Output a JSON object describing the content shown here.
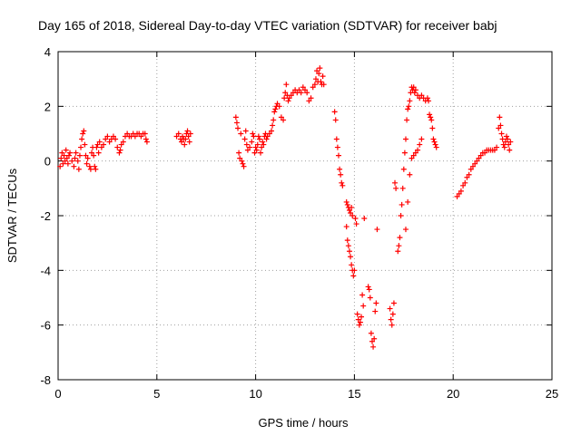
{
  "chart_data": {
    "type": "scatter",
    "title": "Day 165 of 2018, Sidereal Day-to-day VTEC variation (SDTVAR) for receiver babj",
    "xlabel": "GPS time / hours",
    "ylabel": "SDTVAR / TECUs",
    "xlim": [
      0,
      25
    ],
    "ylim": [
      -8,
      4
    ],
    "xticks": [
      0,
      5,
      10,
      15,
      20,
      25
    ],
    "yticks": [
      -8,
      -6,
      -4,
      -2,
      0,
      2,
      4
    ],
    "grid": true,
    "marker": "+",
    "series": [
      {
        "name": "SDTVAR",
        "color": "#ff0000",
        "points": [
          [
            0.1,
            -0.2
          ],
          [
            0.15,
            0.1
          ],
          [
            0.2,
            0.3
          ],
          [
            0.25,
            -0.1
          ],
          [
            0.3,
            0.2
          ],
          [
            0.35,
            0.0
          ],
          [
            0.4,
            0.4
          ],
          [
            0.45,
            0.1
          ],
          [
            0.5,
            -0.1
          ],
          [
            0.55,
            0.2
          ],
          [
            0.6,
            0.3
          ],
          [
            0.7,
            0.0
          ],
          [
            0.8,
            -0.2
          ],
          [
            0.85,
            0.1
          ],
          [
            0.9,
            0.3
          ],
          [
            1.0,
            0.0
          ],
          [
            1.05,
            -0.3
          ],
          [
            1.1,
            0.2
          ],
          [
            1.15,
            0.5
          ],
          [
            1.2,
            0.8
          ],
          [
            1.25,
            1.0
          ],
          [
            1.3,
            1.1
          ],
          [
            1.35,
            0.6
          ],
          [
            1.4,
            0.2
          ],
          [
            1.45,
            -0.1
          ],
          [
            1.5,
            0.1
          ],
          [
            1.6,
            -0.2
          ],
          [
            1.65,
            -0.3
          ],
          [
            1.7,
            0.3
          ],
          [
            1.75,
            0.5
          ],
          [
            1.8,
            0.2
          ],
          [
            1.85,
            -0.2
          ],
          [
            1.9,
            -0.3
          ],
          [
            1.95,
            0.5
          ],
          [
            2.0,
            0.6
          ],
          [
            2.05,
            0.3
          ],
          [
            2.1,
            0.7
          ],
          [
            2.2,
            0.5
          ],
          [
            2.3,
            0.6
          ],
          [
            2.4,
            0.8
          ],
          [
            2.5,
            0.9
          ],
          [
            2.6,
            0.7
          ],
          [
            2.7,
            0.8
          ],
          [
            2.8,
            0.9
          ],
          [
            2.9,
            0.8
          ],
          [
            3.0,
            0.5
          ],
          [
            3.1,
            0.3
          ],
          [
            3.15,
            0.4
          ],
          [
            3.2,
            0.6
          ],
          [
            3.3,
            0.7
          ],
          [
            3.4,
            0.9
          ],
          [
            3.5,
            1.0
          ],
          [
            3.6,
            0.9
          ],
          [
            3.7,
            0.9
          ],
          [
            3.8,
            1.0
          ],
          [
            3.9,
            0.9
          ],
          [
            4.0,
            1.0
          ],
          [
            4.1,
            1.0
          ],
          [
            4.2,
            0.9
          ],
          [
            4.3,
            1.0
          ],
          [
            4.4,
            1.0
          ],
          [
            4.45,
            0.8
          ],
          [
            4.5,
            0.7
          ],
          [
            6.0,
            0.9
          ],
          [
            6.1,
            1.0
          ],
          [
            6.2,
            0.8
          ],
          [
            6.25,
            0.7
          ],
          [
            6.3,
            0.9
          ],
          [
            6.35,
            0.8
          ],
          [
            6.4,
            0.6
          ],
          [
            6.45,
            0.8
          ],
          [
            6.5,
            1.0
          ],
          [
            6.55,
            1.1
          ],
          [
            6.6,
            0.9
          ],
          [
            6.65,
            0.7
          ],
          [
            6.7,
            1.0
          ],
          [
            9.0,
            1.6
          ],
          [
            9.05,
            1.4
          ],
          [
            9.1,
            1.2
          ],
          [
            9.15,
            0.3
          ],
          [
            9.2,
            0.1
          ],
          [
            9.25,
            1.0
          ],
          [
            9.3,
            0.0
          ],
          [
            9.35,
            -0.1
          ],
          [
            9.4,
            -0.2
          ],
          [
            9.45,
            0.8
          ],
          [
            9.5,
            1.1
          ],
          [
            9.55,
            0.6
          ],
          [
            9.6,
            0.4
          ],
          [
            9.7,
            0.5
          ],
          [
            9.8,
            0.7
          ],
          [
            9.85,
            1.0
          ],
          [
            9.9,
            0.9
          ],
          [
            9.95,
            0.3
          ],
          [
            10.0,
            0.5
          ],
          [
            10.05,
            0.4
          ],
          [
            10.1,
            0.6
          ],
          [
            10.15,
            0.9
          ],
          [
            10.2,
            0.8
          ],
          [
            10.25,
            0.3
          ],
          [
            10.3,
            0.5
          ],
          [
            10.35,
            0.7
          ],
          [
            10.4,
            0.6
          ],
          [
            10.45,
            0.9
          ],
          [
            10.5,
            1.0
          ],
          [
            10.55,
            0.8
          ],
          [
            10.6,
            0.9
          ],
          [
            10.7,
            1.0
          ],
          [
            10.8,
            1.1
          ],
          [
            10.85,
            1.3
          ],
          [
            10.9,
            1.5
          ],
          [
            10.95,
            1.8
          ],
          [
            11.0,
            1.9
          ],
          [
            11.05,
            2.0
          ],
          [
            11.1,
            2.1
          ],
          [
            11.2,
            2.0
          ],
          [
            11.3,
            1.6
          ],
          [
            11.4,
            1.5
          ],
          [
            11.45,
            2.3
          ],
          [
            11.5,
            2.5
          ],
          [
            11.55,
            2.8
          ],
          [
            11.6,
            2.4
          ],
          [
            11.65,
            2.2
          ],
          [
            11.7,
            2.3
          ],
          [
            11.8,
            2.4
          ],
          [
            11.9,
            2.5
          ],
          [
            12.0,
            2.6
          ],
          [
            12.1,
            2.5
          ],
          [
            12.2,
            2.6
          ],
          [
            12.3,
            2.5
          ],
          [
            12.4,
            2.7
          ],
          [
            12.5,
            2.6
          ],
          [
            12.6,
            2.5
          ],
          [
            12.7,
            2.2
          ],
          [
            12.8,
            2.3
          ],
          [
            12.9,
            2.7
          ],
          [
            13.0,
            2.8
          ],
          [
            13.05,
            3.0
          ],
          [
            13.1,
            3.3
          ],
          [
            13.15,
            2.9
          ],
          [
            13.2,
            3.2
          ],
          [
            13.25,
            3.4
          ],
          [
            13.3,
            2.9
          ],
          [
            13.35,
            2.8
          ],
          [
            13.4,
            3.1
          ],
          [
            13.45,
            2.8
          ],
          [
            14.0,
            1.8
          ],
          [
            14.05,
            1.5
          ],
          [
            14.1,
            0.8
          ],
          [
            14.15,
            0.5
          ],
          [
            14.2,
            0.2
          ],
          [
            14.25,
            -0.3
          ],
          [
            14.3,
            -0.5
          ],
          [
            14.35,
            -0.8
          ],
          [
            14.4,
            -0.9
          ],
          [
            14.6,
            -1.5
          ],
          [
            14.65,
            -1.6
          ],
          [
            14.7,
            -1.7
          ],
          [
            14.75,
            -1.8
          ],
          [
            14.8,
            -1.9
          ],
          [
            14.85,
            -1.7
          ],
          [
            14.9,
            -2.0
          ],
          [
            14.6,
            -2.4
          ],
          [
            14.65,
            -2.9
          ],
          [
            14.7,
            -3.1
          ],
          [
            14.75,
            -3.3
          ],
          [
            14.8,
            -3.5
          ],
          [
            14.85,
            -3.8
          ],
          [
            14.9,
            -4.0
          ],
          [
            14.95,
            -4.2
          ],
          [
            15.0,
            -4.0
          ],
          [
            15.05,
            -2.1
          ],
          [
            15.1,
            -2.3
          ],
          [
            15.15,
            -5.6
          ],
          [
            15.2,
            -5.8
          ],
          [
            15.25,
            -6.0
          ],
          [
            15.3,
            -5.9
          ],
          [
            15.35,
            -5.7
          ],
          [
            15.4,
            -4.9
          ],
          [
            15.45,
            -5.3
          ],
          [
            15.5,
            -2.1
          ],
          [
            15.7,
            -4.6
          ],
          [
            15.75,
            -4.7
          ],
          [
            15.8,
            -5.0
          ],
          [
            15.85,
            -6.3
          ],
          [
            15.9,
            -6.6
          ],
          [
            15.95,
            -6.8
          ],
          [
            16.0,
            -6.5
          ],
          [
            16.05,
            -5.5
          ],
          [
            16.1,
            -5.2
          ],
          [
            16.15,
            -2.5
          ],
          [
            16.8,
            -5.4
          ],
          [
            16.85,
            -5.8
          ],
          [
            16.9,
            -6.0
          ],
          [
            16.95,
            -5.6
          ],
          [
            17.0,
            -5.2
          ],
          [
            17.05,
            -0.8
          ],
          [
            17.1,
            -1.0
          ],
          [
            17.2,
            -3.3
          ],
          [
            17.25,
            -3.1
          ],
          [
            17.3,
            -2.8
          ],
          [
            17.35,
            -2.0
          ],
          [
            17.4,
            -1.6
          ],
          [
            17.45,
            -1.0
          ],
          [
            17.5,
            -0.3
          ],
          [
            17.55,
            0.3
          ],
          [
            17.6,
            0.8
          ],
          [
            17.65,
            1.5
          ],
          [
            17.7,
            1.9
          ],
          [
            17.75,
            2.0
          ],
          [
            17.8,
            2.2
          ],
          [
            17.85,
            2.5
          ],
          [
            17.9,
            2.7
          ],
          [
            17.95,
            2.6
          ],
          [
            18.0,
            2.7
          ],
          [
            18.05,
            2.5
          ],
          [
            18.1,
            2.6
          ],
          [
            18.2,
            2.4
          ],
          [
            18.3,
            2.3
          ],
          [
            18.4,
            2.4
          ],
          [
            18.5,
            2.3
          ],
          [
            18.6,
            2.2
          ],
          [
            18.7,
            2.3
          ],
          [
            18.75,
            2.2
          ],
          [
            18.8,
            1.7
          ],
          [
            18.85,
            1.6
          ],
          [
            18.9,
            1.5
          ],
          [
            18.95,
            1.2
          ],
          [
            19.0,
            0.8
          ],
          [
            19.05,
            0.7
          ],
          [
            19.1,
            0.6
          ],
          [
            19.15,
            0.5
          ],
          [
            17.6,
            -2.5
          ],
          [
            17.7,
            -1.5
          ],
          [
            17.8,
            -0.5
          ],
          [
            17.9,
            0.1
          ],
          [
            18.0,
            0.2
          ],
          [
            18.1,
            0.3
          ],
          [
            18.2,
            0.4
          ],
          [
            18.3,
            0.6
          ],
          [
            18.4,
            0.8
          ],
          [
            20.2,
            -1.3
          ],
          [
            20.3,
            -1.2
          ],
          [
            20.4,
            -1.1
          ],
          [
            20.5,
            -0.9
          ],
          [
            20.6,
            -0.8
          ],
          [
            20.7,
            -0.6
          ],
          [
            20.8,
            -0.5
          ],
          [
            20.9,
            -0.3
          ],
          [
            21.0,
            -0.2
          ],
          [
            21.1,
            -0.1
          ],
          [
            21.2,
            0.0
          ],
          [
            21.3,
            0.1
          ],
          [
            21.4,
            0.2
          ],
          [
            21.5,
            0.3
          ],
          [
            21.6,
            0.3
          ],
          [
            21.7,
            0.4
          ],
          [
            21.8,
            0.4
          ],
          [
            21.9,
            0.4
          ],
          [
            22.0,
            0.4
          ],
          [
            22.1,
            0.4
          ],
          [
            22.2,
            0.5
          ],
          [
            22.3,
            1.2
          ],
          [
            22.35,
            1.6
          ],
          [
            22.4,
            1.3
          ],
          [
            22.45,
            1.0
          ],
          [
            22.5,
            0.8
          ],
          [
            22.55,
            0.6
          ],
          [
            22.6,
            0.5
          ],
          [
            22.65,
            0.7
          ],
          [
            22.7,
            0.9
          ],
          [
            22.75,
            0.8
          ],
          [
            22.8,
            0.6
          ],
          [
            22.85,
            0.4
          ],
          [
            22.9,
            0.7
          ]
        ]
      }
    ]
  }
}
